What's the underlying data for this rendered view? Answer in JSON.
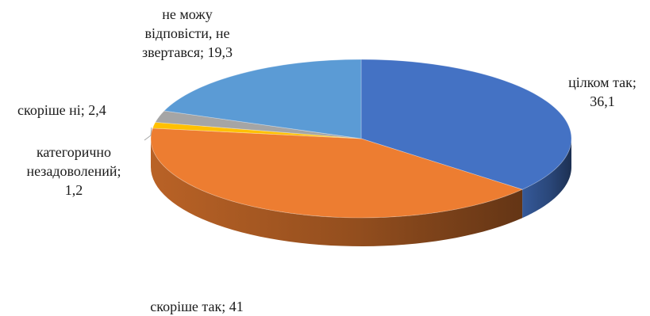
{
  "chart_data": {
    "type": "pie",
    "title": "",
    "slices": [
      {
        "name": "цілком так",
        "value": 36.1,
        "color": "#4472C4",
        "label_lines": [
          "цілком так;",
          "36,1"
        ]
      },
      {
        "name": "скоріше так",
        "value": 41,
        "color": "#ED7D31",
        "label_lines": [
          "скоріше так; 41"
        ]
      },
      {
        "name": "категорично незадоволений",
        "value": 1.2,
        "color": "#FFC000",
        "label_lines": [
          "категорично",
          "незадоволений;",
          "1,2"
        ]
      },
      {
        "name": "скоріше ні",
        "value": 2.4,
        "color": "#A5A5A5",
        "label_lines": [
          "скоріше ні; 2,4"
        ]
      },
      {
        "name": "не можу відповісти, не звертався",
        "value": 19.3,
        "color": "#5B9BD5",
        "label_lines": [
          "не можу",
          "відповісти, не",
          "звертався; 19,3"
        ]
      }
    ],
    "style": "3d",
    "legend": "none"
  }
}
